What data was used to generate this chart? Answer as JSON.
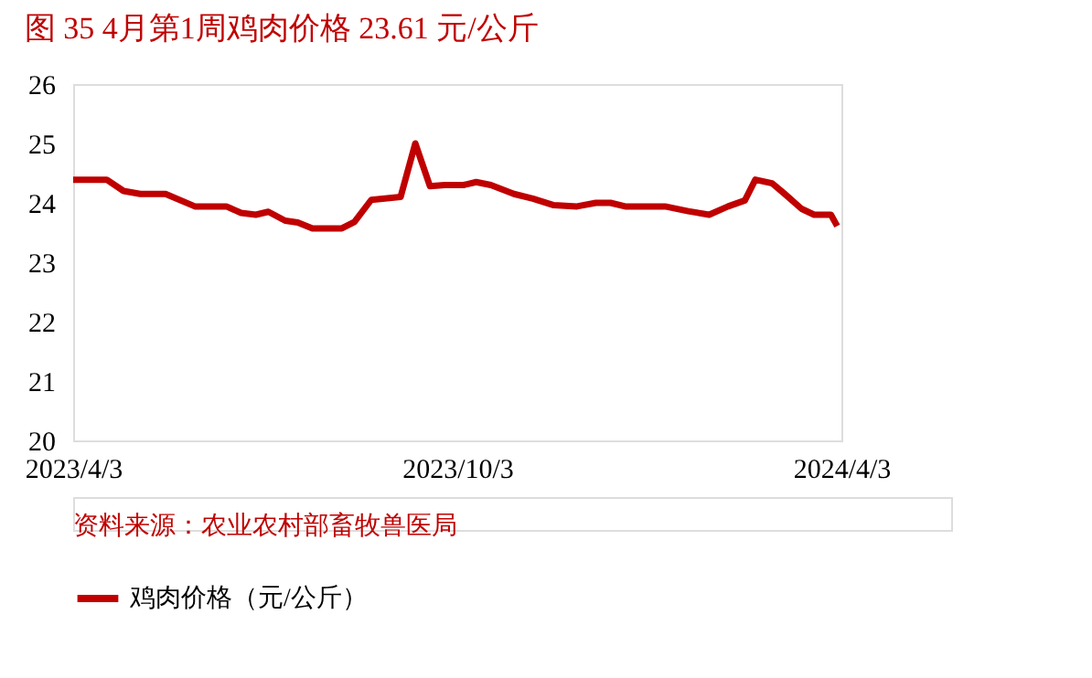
{
  "chart_data": {
    "type": "line",
    "title": "图 35   4月第1周鸡肉价格 23.61 元/公斤",
    "annotations": [
      "资料来源：农业农村部畜牧兽医局"
    ],
    "x": [
      "2023-04-03",
      "2023-04-19",
      "2023-04-27",
      "2023-05-05",
      "2023-05-17",
      "2023-05-31",
      "2023-06-15",
      "2023-06-22",
      "2023-06-29",
      "2023-07-05",
      "2023-07-13",
      "2023-07-19",
      "2023-07-26",
      "2023-08-09",
      "2023-08-15",
      "2023-08-23",
      "2023-09-06",
      "2023-09-13",
      "2023-09-20",
      "2023-09-27",
      "2023-10-06",
      "2023-10-12",
      "2023-10-19",
      "2023-10-30",
      "2023-11-08",
      "2023-11-18",
      "2023-11-29",
      "2023-12-08",
      "2023-12-15",
      "2023-12-22",
      "2024-01-10",
      "2024-01-21",
      "2024-01-31",
      "2024-02-09",
      "2024-02-17",
      "2024-02-22",
      "2024-03-01",
      "2024-03-07",
      "2024-03-15",
      "2024-03-21",
      "2024-03-29",
      "2024-04-01"
    ],
    "series": [
      {
        "name": "鸡肉价格（元/公斤）",
        "color": "#c00000",
        "values": [
          24.39,
          24.39,
          24.2,
          24.15,
          24.15,
          23.94,
          23.94,
          23.83,
          23.8,
          23.85,
          23.7,
          23.67,
          23.57,
          23.57,
          23.68,
          24.05,
          24.1,
          25.0,
          24.28,
          24.3,
          24.3,
          24.35,
          24.3,
          24.15,
          24.07,
          23.96,
          23.94,
          24.0,
          24.0,
          23.94,
          23.94,
          23.86,
          23.8,
          23.94,
          24.04,
          24.39,
          24.33,
          24.15,
          23.9,
          23.8,
          23.8,
          23.61
        ]
      }
    ],
    "xlim": [
      "2023-04-03",
      "2024-04-03"
    ],
    "xticks": [
      {
        "value": "2023-04-03",
        "label": "2023/4/3"
      },
      {
        "value": "2023-10-03",
        "label": "2023/10/3"
      },
      {
        "value": "2024-04-03",
        "label": "2024/4/3"
      }
    ],
    "ylim": [
      20,
      26
    ],
    "yticks": [
      20,
      21,
      22,
      23,
      24,
      25,
      26
    ],
    "grid": false,
    "legend": "bottom",
    "marker": "none",
    "line_style": "solid"
  }
}
